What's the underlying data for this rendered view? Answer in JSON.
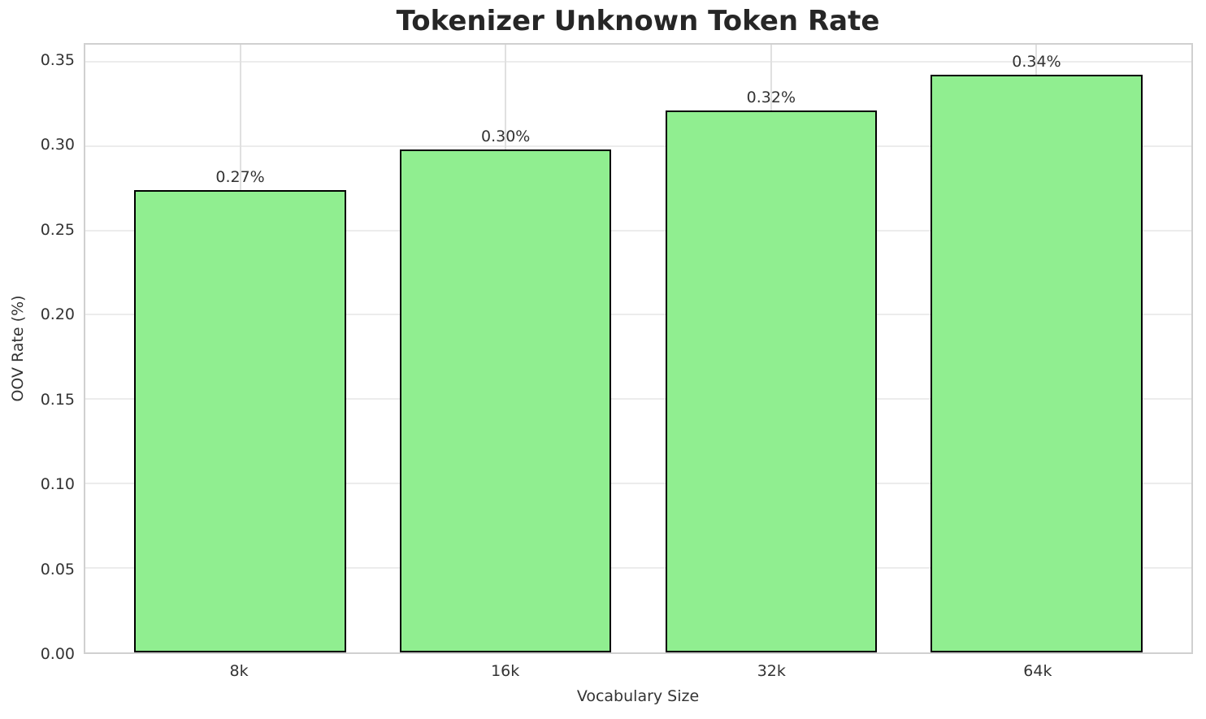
{
  "chart": {
    "title": "Tokenizer Unknown Token Rate",
    "xlabel": "Vocabulary Size",
    "ylabel": "OOV Rate (%)"
  },
  "chart_data": {
    "type": "bar",
    "title": "Tokenizer Unknown Token Rate",
    "xlabel": "Vocabulary Size",
    "ylabel": "OOV Rate (%)",
    "categories": [
      "8k",
      "16k",
      "32k",
      "64k"
    ],
    "values": [
      0.274,
      0.298,
      0.321,
      0.342
    ],
    "bar_labels": [
      "0.27%",
      "0.30%",
      "0.32%",
      "0.34%"
    ],
    "ylim": [
      0,
      0.36
    ],
    "yticks": [
      "0.00",
      "0.05",
      "0.10",
      "0.15",
      "0.20",
      "0.25",
      "0.30",
      "0.35"
    ],
    "grid": true,
    "legend_position": "none",
    "colors": {
      "bar_fill": "#90EE90",
      "bar_edge": "#000000",
      "grid_horizontal": "#ececec",
      "grid_vertical": "#e0e0e0",
      "spine": "#d0d0d0",
      "tick_text": "#333333",
      "title_text": "#262626"
    }
  }
}
